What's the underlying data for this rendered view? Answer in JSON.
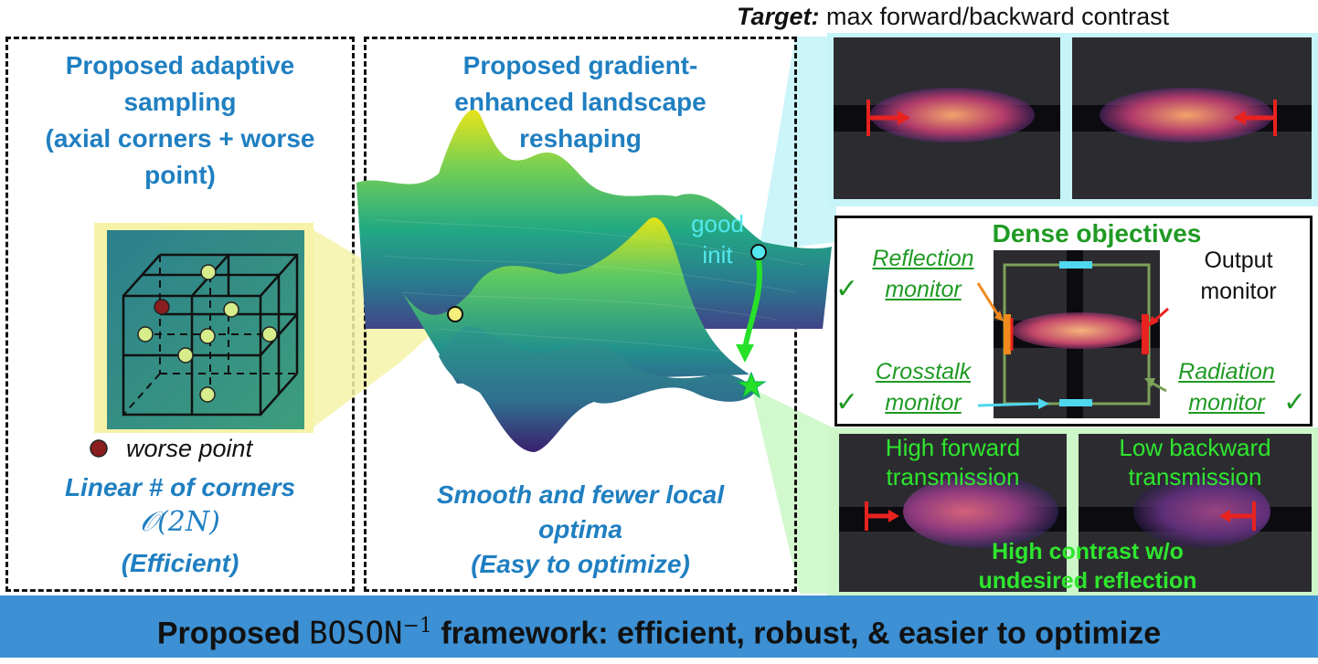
{
  "left_panel": {
    "title_line1": "Proposed adaptive",
    "title_line2": "sampling",
    "title_line3": "(axial corners + worse",
    "title_line4": "point)",
    "worse_point_label": "worse point",
    "corners_label": "Linear # of corners",
    "complexity": "𝒪(2N)",
    "efficiency": "(Efficient)"
  },
  "middle_panel": {
    "title_line1": "Proposed gradient-",
    "title_line2": "enhanced landscape",
    "title_line3": "reshaping",
    "good_init_line1": "good",
    "good_init_line2": "init",
    "caption_line1": "Smooth and fewer local",
    "caption_line2": "optima",
    "caption_line3": "(Easy to optimize)"
  },
  "right_panel": {
    "target_prefix": "Target:",
    "target_text": "max forward/backward contrast",
    "dense_title": "Dense objectives",
    "reflection_line1": "Reflection",
    "reflection_line2": "monitor",
    "output_line1": "Output",
    "output_line2": "monitor",
    "crosstalk_line1": "Crosstalk",
    "crosstalk_line2": "monitor",
    "radiation_line1": "Radiation",
    "radiation_line2": "monitor",
    "check_symbol": "✓",
    "high_fwd_line1": "High forward",
    "high_fwd_line2": "transmission",
    "low_bwd_line1": "Low backward",
    "low_bwd_line2": "transmission",
    "contrast_line1": "High contrast w/o",
    "contrast_line2": "undesired reflection"
  },
  "footer": {
    "part1": "Proposed ",
    "boson": "BOSON",
    "exponent": "−1",
    "part2": " framework: efficient, robust, & easier to optimize"
  },
  "colors": {
    "title_blue": "#1f7fc1",
    "monitor_green": "#1f9a24",
    "bright_green": "#2ee62e",
    "footer_blue": "#3c90d3",
    "cyan_highlight": "#c6f4f8",
    "green_highlight": "#cdf7c9"
  }
}
